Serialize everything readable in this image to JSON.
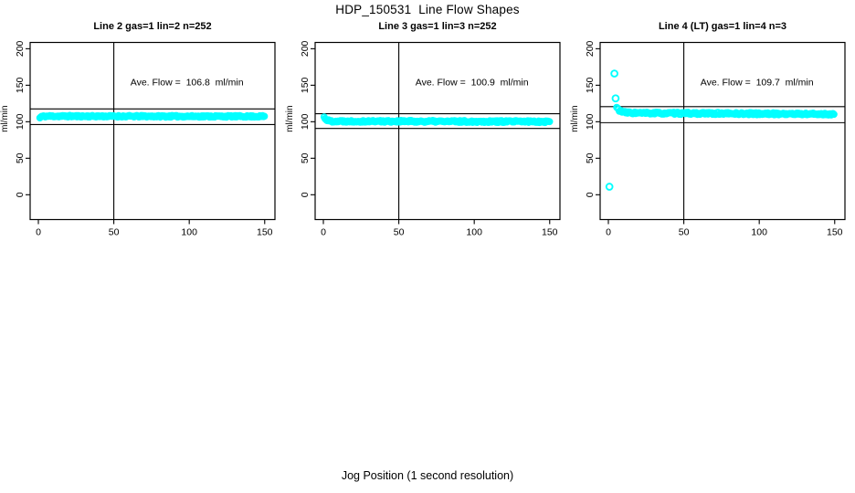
{
  "figure": {
    "title": "HDP_150531  Line Flow Shapes",
    "xlabel": "Jog Position (1 second resolution)",
    "background": "#FFFFFF",
    "point_color": "#00FFFF",
    "axis_color": "#000000"
  },
  "chart_data": [
    {
      "type": "scatter",
      "title": "Line 2 gas=1 lin=2 n=252",
      "line": 2,
      "gas": 1,
      "lin": 2,
      "n": 252,
      "annotation": "Ave. Flow =  106.8  ml/min",
      "ave_flow_ml_min": 106.8,
      "ylabel": "ml/min",
      "xlim": [
        -5.45,
        156.8
      ],
      "ylim": [
        -34,
        208.6
      ],
      "xticks": [
        0,
        50,
        100,
        150
      ],
      "yticks": [
        0,
        50,
        100,
        150,
        200
      ],
      "vline_x": 50,
      "hlines": [
        117.5,
        96.1
      ],
      "annotation_pos": [
        98.5,
        154
      ],
      "profile": [
        [
          1,
          105.3
        ],
        [
          2,
          107.2
        ],
        [
          6,
          107.6
        ],
        [
          75,
          107.4
        ],
        [
          150,
          107.3
        ]
      ],
      "jitter": 1.1,
      "step": 0.6,
      "seed": 11,
      "outliers": []
    },
    {
      "type": "scatter",
      "title": "Line 3 gas=1 lin=3 n=252",
      "line": 3,
      "gas": 1,
      "lin": 3,
      "n": 252,
      "annotation": "Ave. Flow =  100.9  ml/min",
      "ave_flow_ml_min": 100.9,
      "ylabel": "ml/min",
      "xlim": [
        -5.45,
        156.8
      ],
      "ylim": [
        -34,
        208.6
      ],
      "xticks": [
        0,
        50,
        100,
        150
      ],
      "yticks": [
        0,
        50,
        100,
        150,
        200
      ],
      "vline_x": 50,
      "hlines": [
        111.0,
        90.8
      ],
      "annotation_pos": [
        98.5,
        154
      ],
      "profile": [
        [
          0.5,
          106.2
        ],
        [
          2.5,
          102.0
        ],
        [
          5,
          100.8
        ],
        [
          80,
          100.4
        ],
        [
          150,
          100.2
        ]
      ],
      "jitter": 1.3,
      "step": 0.6,
      "seed": 22,
      "outliers": []
    },
    {
      "type": "scatter",
      "title": "Line 4 (LT) gas=1 lin=4 n=3",
      "line": 4,
      "line_note": "LT",
      "gas": 1,
      "lin": 4,
      "n": 3,
      "annotation": "Ave. Flow =  109.7  ml/min",
      "ave_flow_ml_min": 109.7,
      "ylabel": "ml/min",
      "xlim": [
        -5.45,
        156.8
      ],
      "ylim": [
        -34,
        208.6
      ],
      "xticks": [
        0,
        50,
        100,
        150
      ],
      "yticks": [
        0,
        50,
        100,
        150,
        200
      ],
      "vline_x": 50,
      "hlines": [
        120.7,
        98.7
      ],
      "annotation_pos": [
        98.5,
        154
      ],
      "profile": [
        [
          5.5,
          119.5
        ],
        [
          7,
          116.0
        ],
        [
          10,
          112.8
        ],
        [
          20,
          111.8
        ],
        [
          80,
          111.2
        ],
        [
          150,
          110.4
        ]
      ],
      "jitter": 1.4,
      "step": 0.6,
      "seed": 33,
      "outliers": [
        [
          0.7,
          11
        ],
        [
          4.0,
          166
        ],
        [
          4.8,
          132
        ]
      ]
    }
  ]
}
